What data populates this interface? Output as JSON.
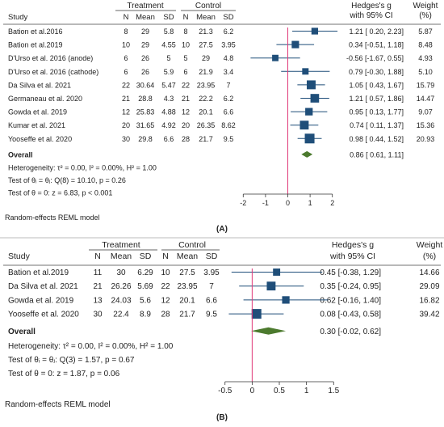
{
  "chart_data": [
    {
      "type": "forest",
      "panel_label": "(A)",
      "headers": {
        "study": "Study",
        "treatment": "Treatment",
        "control": "Control",
        "n": "N",
        "mean": "Mean",
        "sd": "SD",
        "effect_line1": "Hedges's g",
        "effect_line2": "with 95% CI",
        "weight_line1": "Weight",
        "weight_line2": "(%)"
      },
      "studies": [
        {
          "name": "Bation et al.2016",
          "t_n": "8",
          "t_mean": "29",
          "t_sd": "5.8",
          "c_n": "8",
          "c_mean": "21.3",
          "c_sd": "6.2",
          "g": 1.21,
          "lo": 0.2,
          "hi": 2.23,
          "ci_text": "1.21 [ 0.20, 2.23]",
          "weight": "5.87",
          "weight_value": 5.87
        },
        {
          "name": "Bation et al.2019",
          "t_n": "10",
          "t_mean": "29",
          "t_sd": "4.55",
          "c_n": "10",
          "c_mean": "27.5",
          "c_sd": "3.95",
          "g": 0.34,
          "lo": -0.51,
          "hi": 1.18,
          "ci_text": "0.34 [-0.51, 1.18]",
          "weight": "8.48",
          "weight_value": 8.48
        },
        {
          "name": "D'Urso et al. 2016 (anode)",
          "t_n": "6",
          "t_mean": "26",
          "t_sd": "5",
          "c_n": "5",
          "c_mean": "29",
          "c_sd": "4.8",
          "g": -0.56,
          "lo": -1.67,
          "hi": 0.55,
          "ci_text": "-0.56 [-1.67, 0.55]",
          "weight": "4.93",
          "weight_value": 4.93
        },
        {
          "name": "D'Urso et al. 2016 (cathode)",
          "t_n": "6",
          "t_mean": "26",
          "t_sd": "5.9",
          "c_n": "6",
          "c_mean": "21.9",
          "c_sd": "3.4",
          "g": 0.79,
          "lo": -0.3,
          "hi": 1.88,
          "ci_text": "0.79 [-0.30, 1.88]",
          "weight": "5.10",
          "weight_value": 5.1
        },
        {
          "name": "Da Silva et al. 2021",
          "t_n": "22",
          "t_mean": "30.64",
          "t_sd": "5.47",
          "c_n": "22",
          "c_mean": "23.95",
          "c_sd": "7",
          "g": 1.05,
          "lo": 0.43,
          "hi": 1.67,
          "ci_text": "1.05 [ 0.43, 1.67]",
          "weight": "15.79",
          "weight_value": 15.79
        },
        {
          "name": "Germaneau et al. 2020",
          "t_n": "21",
          "t_mean": "28.8",
          "t_sd": "4.3",
          "c_n": "21",
          "c_mean": "22.2",
          "c_sd": "6.2",
          "g": 1.21,
          "lo": 0.57,
          "hi": 1.86,
          "ci_text": "1.21 [ 0.57, 1.86]",
          "weight": "14.47",
          "weight_value": 14.47
        },
        {
          "name": "Gowda et al. 2019",
          "t_n": "12",
          "t_mean": "25.83",
          "t_sd": "4.88",
          "c_n": "12",
          "c_mean": "20.1",
          "c_sd": "6.6",
          "g": 0.95,
          "lo": 0.13,
          "hi": 1.77,
          "ci_text": "0.95 [ 0.13, 1.77]",
          "weight": "9.07",
          "weight_value": 9.07
        },
        {
          "name": "Kumar et al. 2021",
          "t_n": "20",
          "t_mean": "31.65",
          "t_sd": "4.92",
          "c_n": "20",
          "c_mean": "26.35",
          "c_sd": "8.62",
          "g": 0.74,
          "lo": 0.11,
          "hi": 1.37,
          "ci_text": "0.74 [ 0.11, 1.37]",
          "weight": "15.36",
          "weight_value": 15.36
        },
        {
          "name": "Yooseffe et al. 2020",
          "t_n": "30",
          "t_mean": "29.8",
          "t_sd": "6.6",
          "c_n": "28",
          "c_mean": "21.7",
          "c_sd": "9.5",
          "g": 0.98,
          "lo": 0.44,
          "hi": 1.52,
          "ci_text": "0.98 [ 0.44, 1.52]",
          "weight": "20.93",
          "weight_value": 20.93
        }
      ],
      "overall": {
        "label": "Overall",
        "g": 0.86,
        "lo": 0.61,
        "hi": 1.11,
        "ci_text": "0.86 [ 0.61, 1.11]"
      },
      "heterogeneity": "Heterogeneity: τ² = 0.00, I² = 0.00%, H² = 1.00",
      "test_homogeneity": "Test of θᵢ = θⱼ: Q(8) = 10.10, p = 0.26",
      "test_effect": "Test of θ = 0: z = 6.83, p < 0.001",
      "model_note": "Random-effects REML model",
      "x_ticks": [
        -2,
        -1,
        0,
        1,
        2
      ],
      "x_tick_labels": [
        "-2",
        "-1",
        "0",
        "1",
        "2"
      ],
      "x_range": [
        -2.3,
        2.3
      ],
      "colors": {
        "marker": "#1f4e79",
        "line": "#1f4e79",
        "overall": "#4c7a2e",
        "zero": "#e03a7a"
      }
    },
    {
      "type": "forest",
      "panel_label": "(B)",
      "headers": {
        "study": "Study",
        "treatment": "Treatment",
        "control": "Control",
        "n": "N",
        "mean": "Mean",
        "sd": "SD",
        "effect_line1": "Hedges's g",
        "effect_line2": "with 95% CI",
        "weight_line1": "Weight",
        "weight_line2": "(%)"
      },
      "studies": [
        {
          "name": "Bation et al.2019",
          "t_n": "11",
          "t_mean": "30",
          "t_sd": "6.29",
          "c_n": "10",
          "c_mean": "27.5",
          "c_sd": "3.95",
          "g": 0.45,
          "lo": -0.38,
          "hi": 1.29,
          "ci_text": "0.45 [-0.38, 1.29]",
          "weight": "14.66",
          "weight_value": 14.66
        },
        {
          "name": "Da Silva et al. 2021",
          "t_n": "21",
          "t_mean": "26.26",
          "t_sd": "5.69",
          "c_n": "22",
          "c_mean": "23.95",
          "c_sd": "7",
          "g": 0.35,
          "lo": -0.24,
          "hi": 0.95,
          "ci_text": "0.35 [-0.24, 0.95]",
          "weight": "29.09",
          "weight_value": 29.09
        },
        {
          "name": "Gowda et al. 2019",
          "t_n": "13",
          "t_mean": "24.03",
          "t_sd": "5.6",
          "c_n": "12",
          "c_mean": "20.1",
          "c_sd": "6.6",
          "g": 0.62,
          "lo": -0.16,
          "hi": 1.4,
          "ci_text": "0.62 [-0.16, 1.40]",
          "weight": "16.82",
          "weight_value": 16.82
        },
        {
          "name": "Yooseffe et al. 2020",
          "t_n": "30",
          "t_mean": "22.4",
          "t_sd": "8.9",
          "c_n": "28",
          "c_mean": "21.7",
          "c_sd": "9.5",
          "g": 0.08,
          "lo": -0.43,
          "hi": 0.58,
          "ci_text": "0.08 [-0.43, 0.58]",
          "weight": "39.42",
          "weight_value": 39.42
        }
      ],
      "overall": {
        "label": "Overall",
        "g": 0.3,
        "lo": -0.02,
        "hi": 0.62,
        "ci_text": "0.30 [-0.02, 0.62]"
      },
      "heterogeneity": "Heterogeneity: τ² = 0.00, I² = 0.00%, H² = 1.00",
      "test_homogeneity": "Test of θᵢ = θⱼ: Q(3) = 1.57, p = 0.67",
      "test_effect": "Test of θ = 0: z = 1.87, p = 0.06",
      "model_note": "Random-effects REML model",
      "x_ticks": [
        -0.5,
        0,
        0.5,
        1,
        1.5
      ],
      "x_tick_labels": [
        "-0.5",
        "0",
        "0.5",
        "1",
        "1.5"
      ],
      "x_range": [
        -0.6,
        1.6
      ],
      "colors": {
        "marker": "#1f4e79",
        "line": "#1f4e79",
        "overall": "#4c7a2e",
        "zero": "#e03a7a"
      }
    }
  ]
}
